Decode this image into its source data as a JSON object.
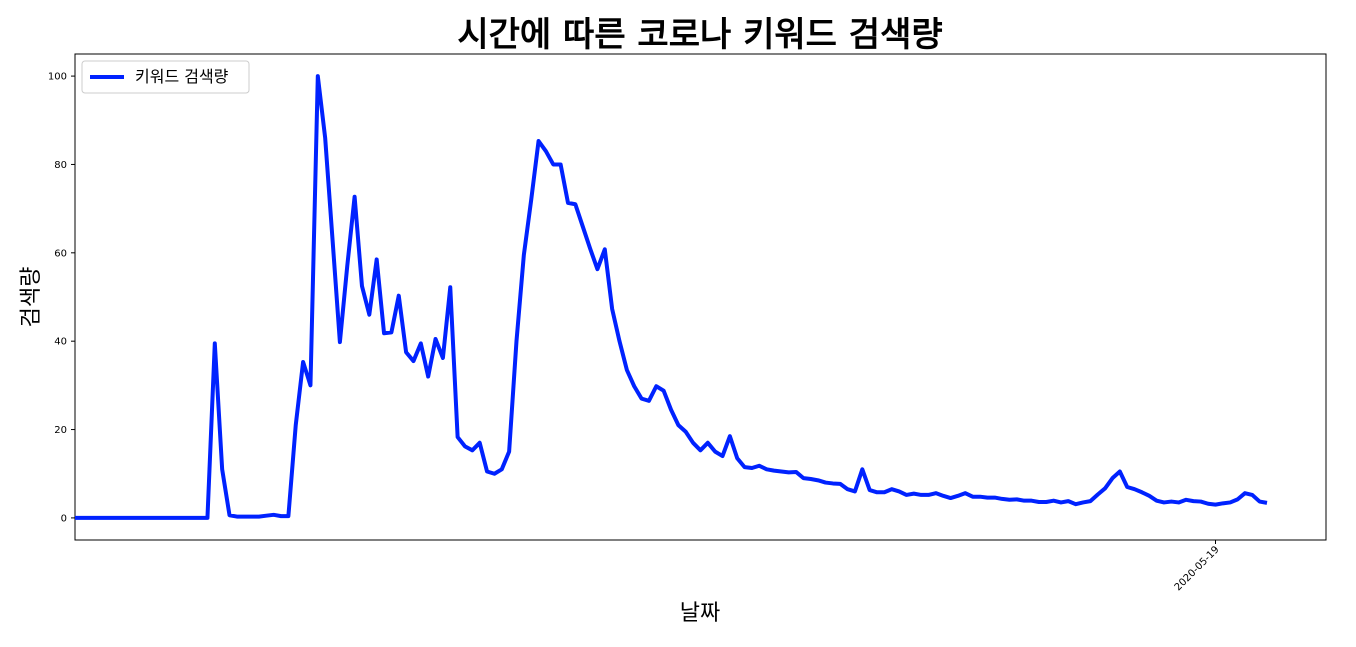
{
  "chart_data": {
    "type": "line",
    "title": "시간에 따른 코로나 키워드 검색량",
    "xlabel": "날짜",
    "ylabel": "검색량",
    "x_start": "2019-12-16",
    "x_tick_labels": [
      "2020-05-19"
    ],
    "x_tick_dates": [
      "2020-05-19"
    ],
    "x_tick_indices": [
      155
    ],
    "y_ticks": [
      0,
      20,
      40,
      60,
      80,
      100
    ],
    "ylim": [
      -5,
      105
    ],
    "grid": false,
    "legend": {
      "position": "top-left"
    },
    "line_color": "#0022ff",
    "series": [
      {
        "name": "키워드 검색량",
        "values": [
          0,
          0,
          0,
          0,
          0,
          0,
          0,
          0,
          0,
          0,
          0,
          0,
          0,
          0,
          0,
          0,
          0,
          0,
          0,
          39.5,
          11,
          0.6,
          0.3,
          0.3,
          0.3,
          0.3,
          0.5,
          0.7,
          0.4,
          0.4,
          21,
          35.3,
          30,
          100,
          86,
          63,
          39.8,
          57,
          72.7,
          52.5,
          46,
          58.5,
          41.8,
          42,
          50.3,
          37.5,
          35.5,
          39.5,
          32,
          40.5,
          36.2,
          52.2,
          18.3,
          16.2,
          15.3,
          17,
          10.5,
          10,
          11,
          15,
          40,
          59.5,
          72,
          85.3,
          83,
          80,
          80,
          71.3,
          71,
          66,
          61,
          56.3,
          60.8,
          47.3,
          40,
          33.5,
          29.8,
          27,
          26.5,
          29.8,
          28.8,
          24.5,
          21,
          19.5,
          17,
          15.3,
          17,
          15,
          14,
          18.5,
          13.5,
          11.5,
          11.3,
          11.8,
          11,
          10.7,
          10.5,
          10.3,
          10.4,
          9,
          8.8,
          8.5,
          8,
          7.8,
          7.7,
          6.5,
          6,
          11,
          6.3,
          5.8,
          5.8,
          6.5,
          6,
          5.2,
          5.5,
          5.2,
          5.2,
          5.6,
          5,
          4.5,
          5,
          5.6,
          4.8,
          4.8,
          4.6,
          4.6,
          4.3,
          4.1,
          4.2,
          3.9,
          3.9,
          3.6,
          3.6,
          3.9,
          3.5,
          3.8,
          3.1,
          3.5,
          3.8,
          5.3,
          6.7,
          9,
          10.5,
          7,
          6.5,
          5.8,
          5,
          3.9,
          3.5,
          3.7,
          3.5,
          4.1,
          3.8,
          3.7,
          3.2,
          3,
          3.3,
          3.5,
          4.2,
          5.6,
          5.2,
          3.7,
          3.4
        ]
      }
    ]
  }
}
